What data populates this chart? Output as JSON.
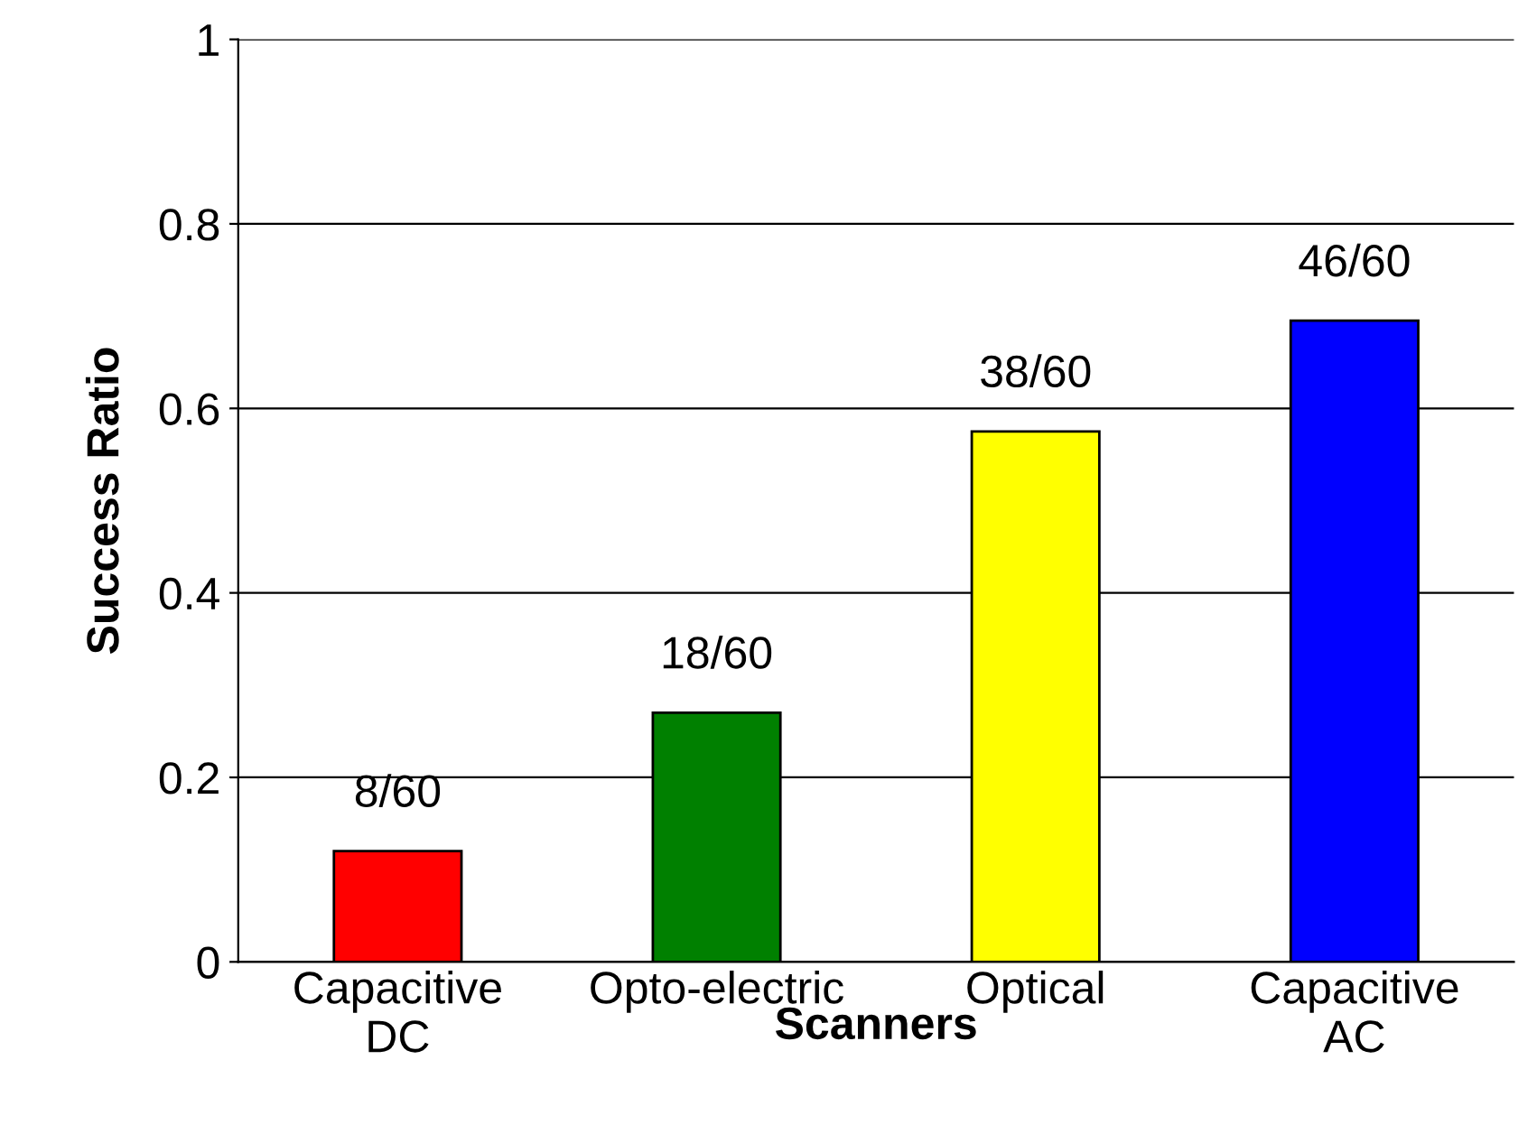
{
  "chart_data": {
    "type": "bar",
    "xlabel": "Scanners",
    "ylabel": "Success Ratio",
    "categories": [
      "Capacitive\nDC",
      "Opto-electric",
      "Optical",
      "Capacitive\nAC"
    ],
    "values": [
      0.12,
      0.27,
      0.575,
      0.695
    ],
    "colors": [
      "#ff0000",
      "#008000",
      "#ffff00",
      "#0000ff"
    ],
    "value_labels": [
      "8/60",
      "18/60",
      "38/60",
      "46/60"
    ],
    "ylim": [
      0,
      1
    ],
    "yticks": [
      0,
      0.2,
      0.4,
      0.6,
      0.8,
      1
    ],
    "grid": "y",
    "legend": false
  }
}
